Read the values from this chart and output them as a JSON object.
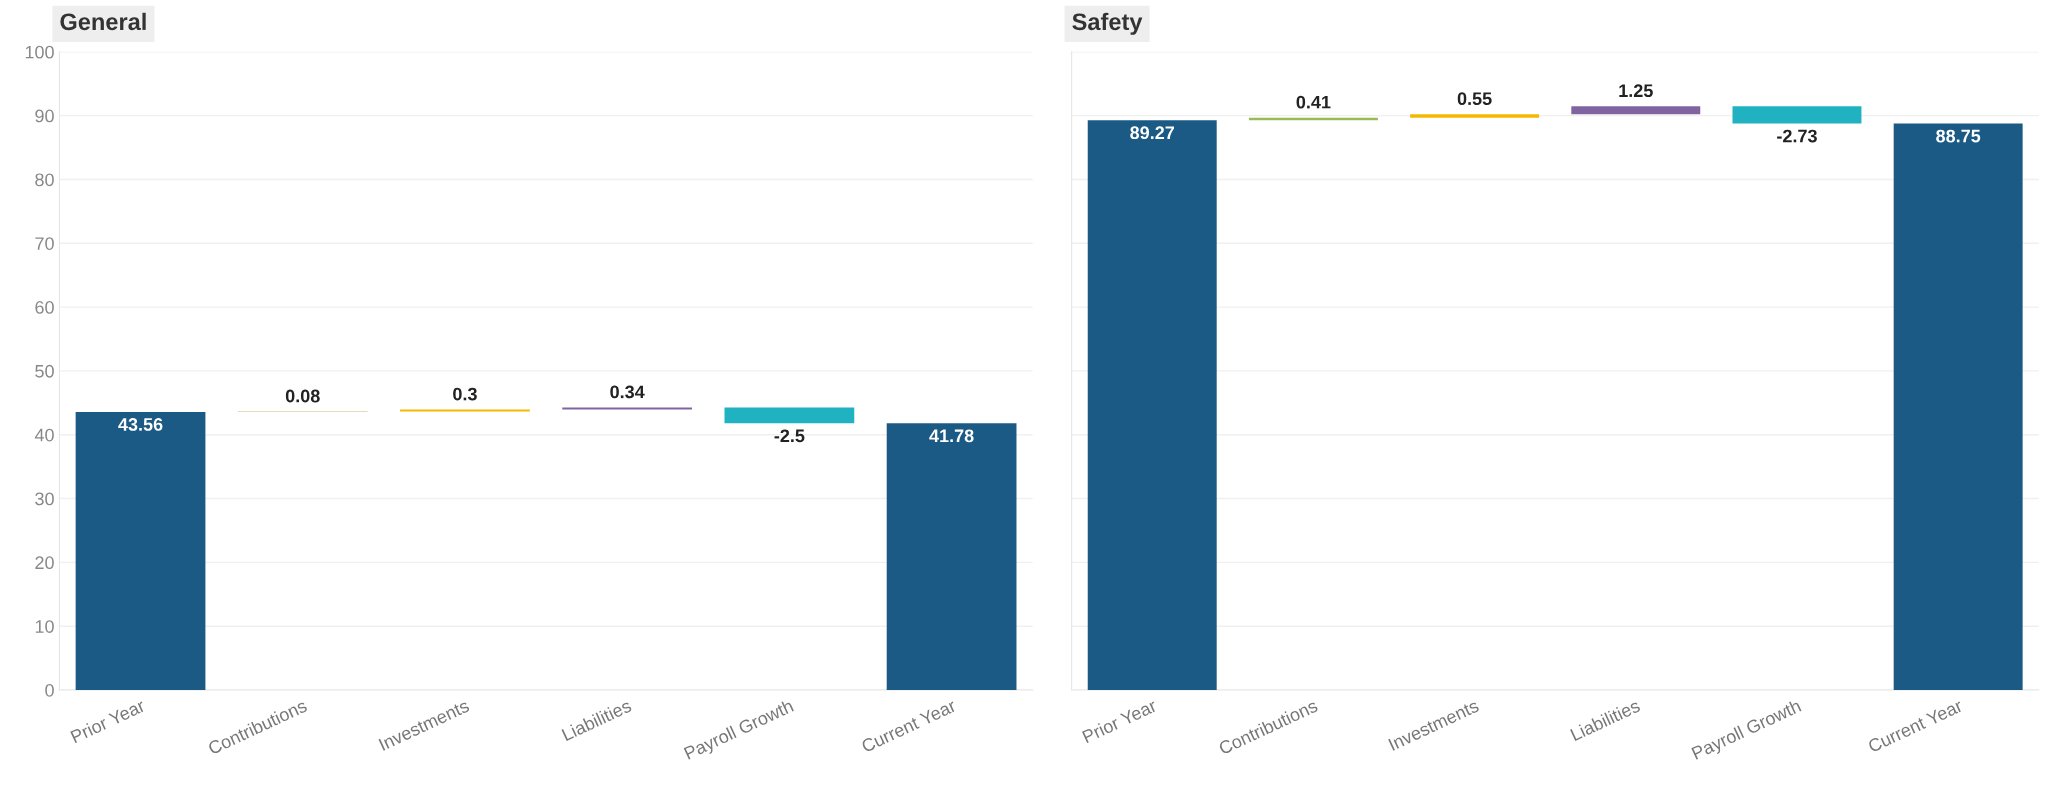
{
  "chart_data": [
    {
      "type": "bar",
      "title": "General",
      "categories": [
        "Prior Year",
        "Contributions",
        "Investments",
        "Liabilities",
        "Payroll Growth",
        "Current Year"
      ],
      "values": [
        43.56,
        0.08,
        0.3,
        0.34,
        -2.5,
        41.78
      ],
      "base": [
        0,
        43.56,
        43.64,
        43.94,
        44.28,
        0
      ],
      "colors": [
        "#1b5a84",
        "#c8b873",
        "#f5b800",
        "#8064a2",
        "#20b2c0",
        "#1b5a84"
      ],
      "ylim": [
        0,
        100
      ],
      "yticks": [
        0,
        10,
        20,
        30,
        40,
        50,
        60,
        70,
        80,
        90,
        100
      ],
      "grid": "y",
      "data_labels": true
    },
    {
      "type": "bar",
      "title": "Safety",
      "categories": [
        "Prior Year",
        "Contributions",
        "Investments",
        "Liabilities",
        "Payroll Growth",
        "Current Year"
      ],
      "values": [
        89.27,
        0.41,
        0.55,
        1.25,
        -2.73,
        88.75
      ],
      "base": [
        0,
        89.27,
        89.68,
        90.23,
        91.48,
        0
      ],
      "colors": [
        "#1b5a84",
        "#9bbb59",
        "#f5b800",
        "#8064a2",
        "#20b2c0",
        "#1b5a84"
      ],
      "ylim": [
        0,
        100
      ],
      "yticks": [
        0,
        10,
        20,
        30,
        40,
        50,
        60,
        70,
        80,
        90,
        100
      ],
      "grid": "y",
      "data_labels": true,
      "tick_labels": "x"
    }
  ]
}
